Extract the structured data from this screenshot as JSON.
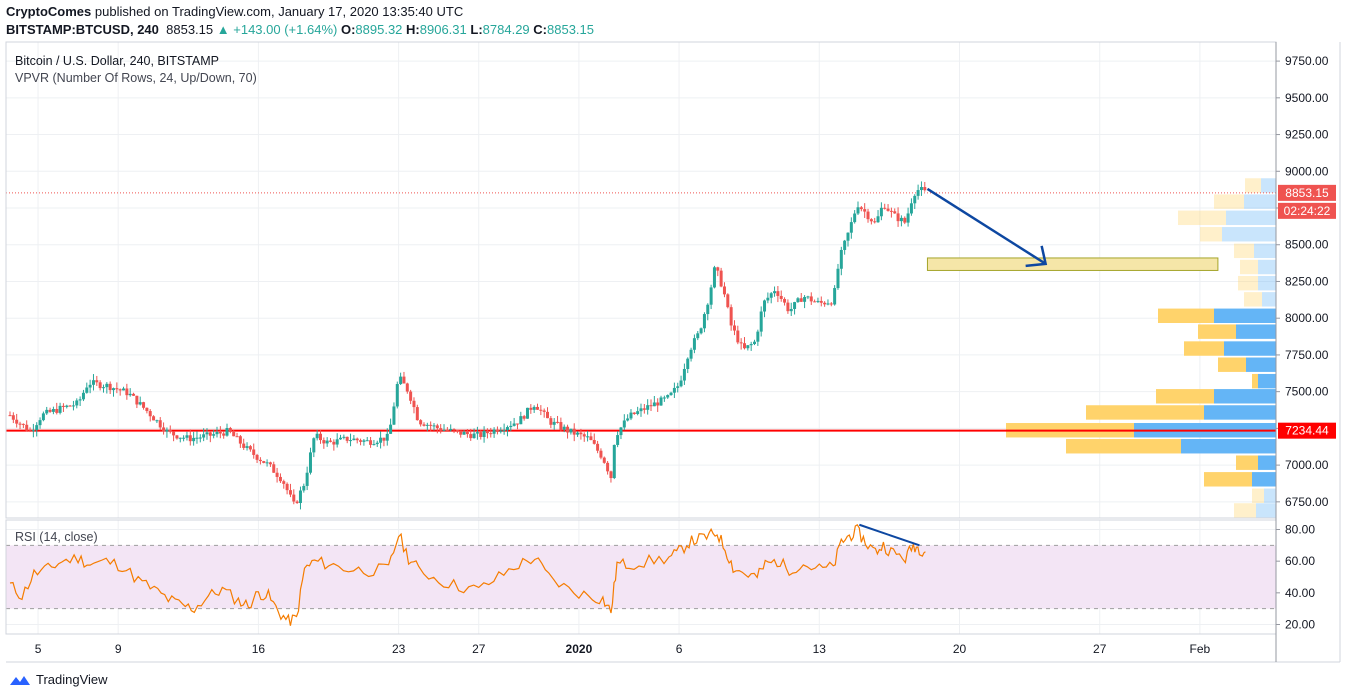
{
  "header": {
    "publisher": "CryptoComes",
    "published_text": "published on TradingView.com, January 17, 2020 13:35:40 UTC",
    "symbol": "BITSTAMP:BTCUSD, 240",
    "last": "8853.15",
    "change": "+143.00 (+1.64%)",
    "o_label": "O:",
    "o": "8895.32",
    "h_label": "H:",
    "h": "8906.31",
    "l_label": "L:",
    "l": "8784.29",
    "c_label": "C:",
    "c": "8853.15"
  },
  "legend": {
    "main": "Bitcoin / U.S. Dollar, 240, BITSTAMP",
    "vpvr": "VPVR (Number Of Rows, 24, Up/Down, 70)",
    "rsi": "RSI (14, close)"
  },
  "footer": {
    "brand": "TradingView"
  },
  "colors": {
    "up": "#26a69a",
    "down": "#ef5350",
    "support_line": "#ff0000",
    "rsi_line": "#f57c00",
    "rsi_band": "#f3e5f5",
    "arrow": "#0d47a1",
    "zone_fill": "#f5e6a8",
    "zone_stroke": "#a5a52a",
    "vol_up": "#64b5f6",
    "vol_down": "#ffd36b"
  },
  "chart_data": {
    "type": "candlestick",
    "y_price_ticks": [
      6750,
      7000,
      7250,
      7500,
      7750,
      8000,
      8250,
      8500,
      8750,
      9000,
      9250,
      9500,
      9750
    ],
    "y_price_tick_labels": [
      "6750.00",
      "7000.00",
      "7250.00",
      "7500.00",
      "7750.00",
      "8000.00",
      "8250.00",
      "8500.00",
      "8750.00",
      "9000.00",
      "9250.00",
      "9500.00",
      "9750.00"
    ],
    "y_price_range": [
      6640,
      9880
    ],
    "x_ticks": [
      {
        "label": "5",
        "day": 5
      },
      {
        "label": "9",
        "day": 9
      },
      {
        "label": "16",
        "day": 16
      },
      {
        "label": "23",
        "day": 23
      },
      {
        "label": "27",
        "day": 27
      },
      {
        "label": "2020",
        "day": 32
      },
      {
        "label": "6",
        "day": 37
      },
      {
        "label": "13",
        "day": 44
      },
      {
        "label": "20",
        "day": 51
      },
      {
        "label": "27",
        "day": 58
      },
      {
        "label": "Feb",
        "day": 63
      }
    ],
    "x_day_range": [
      3.4,
      66.8
    ],
    "price_path": [
      [
        3.6,
        7340
      ],
      [
        4.6,
        7230
      ],
      [
        5.2,
        7340
      ],
      [
        6.0,
        7380
      ],
      [
        7.0,
        7420
      ],
      [
        7.5,
        7560
      ],
      [
        8.5,
        7540
      ],
      [
        9.5,
        7490
      ],
      [
        10.5,
        7360
      ],
      [
        11.5,
        7220
      ],
      [
        12.5,
        7180
      ],
      [
        13.5,
        7200
      ],
      [
        14.5,
        7230
      ],
      [
        15.5,
        7100
      ],
      [
        16.0,
        7050
      ],
      [
        16.5,
        7000
      ],
      [
        17.2,
        6900
      ],
      [
        17.8,
        6720
      ],
      [
        18.3,
        6880
      ],
      [
        18.8,
        7200
      ],
      [
        19.5,
        7150
      ],
      [
        20.5,
        7180
      ],
      [
        21.5,
        7160
      ],
      [
        22.5,
        7190
      ],
      [
        23.0,
        7600
      ],
      [
        23.5,
        7500
      ],
      [
        24.0,
        7300
      ],
      [
        25.0,
        7250
      ],
      [
        26.0,
        7220
      ],
      [
        27.0,
        7200
      ],
      [
        28.0,
        7250
      ],
      [
        29.0,
        7300
      ],
      [
        29.8,
        7420
      ],
      [
        30.5,
        7300
      ],
      [
        31.5,
        7230
      ],
      [
        32.5,
        7180
      ],
      [
        33.2,
        7050
      ],
      [
        33.6,
        6920
      ],
      [
        33.8,
        7200
      ],
      [
        34.5,
        7330
      ],
      [
        35.5,
        7400
      ],
      [
        36.5,
        7460
      ],
      [
        37.0,
        7550
      ],
      [
        37.5,
        7780
      ],
      [
        38.0,
        7900
      ],
      [
        38.5,
        8150
      ],
      [
        38.8,
        8350
      ],
      [
        39.2,
        8200
      ],
      [
        39.6,
        7950
      ],
      [
        40.2,
        7780
      ],
      [
        40.8,
        7840
      ],
      [
        41.2,
        8100
      ],
      [
        41.8,
        8200
      ],
      [
        42.5,
        8050
      ],
      [
        43.2,
        8150
      ],
      [
        44.0,
        8100
      ],
      [
        44.7,
        8120
      ],
      [
        45.0,
        8400
      ],
      [
        45.5,
        8600
      ],
      [
        45.9,
        8780
      ],
      [
        46.3,
        8720
      ],
      [
        46.8,
        8640
      ],
      [
        47.2,
        8780
      ],
      [
        47.7,
        8700
      ],
      [
        48.3,
        8650
      ],
      [
        48.7,
        8850
      ],
      [
        49.0,
        8880
      ],
      [
        49.3,
        8853
      ]
    ],
    "support_level": 7234.44,
    "current_price": 8853.15,
    "price_label": "8853.15",
    "countdown_label": "02:24:22",
    "support_label": "7234.44",
    "vpvr_rows": [
      {
        "price": 6688,
        "up": 20,
        "down": 22
      },
      {
        "price": 6788,
        "up": 12,
        "down": 12
      },
      {
        "price": 6900,
        "up": 24,
        "down": 48
      },
      {
        "price": 7013,
        "up": 18,
        "down": 22
      },
      {
        "price": 7125,
        "up": 95,
        "down": 115
      },
      {
        "price": 7234,
        "up": 142,
        "down": 128
      },
      {
        "price": 7355,
        "up": 72,
        "down": 118
      },
      {
        "price": 7465,
        "up": 62,
        "down": 58
      },
      {
        "price": 7568,
        "up": 18,
        "down": 6
      },
      {
        "price": 7680,
        "up": 30,
        "down": 28
      },
      {
        "price": 7790,
        "up": 52,
        "down": 40
      },
      {
        "price": 7905,
        "up": 40,
        "down": 38
      },
      {
        "price": 8013,
        "up": 62,
        "down": 56
      },
      {
        "price": 8125,
        "up": 14,
        "down": 18
      },
      {
        "price": 8235,
        "up": 18,
        "down": 20
      },
      {
        "price": 8345,
        "up": 18,
        "down": 18
      },
      {
        "price": 8455,
        "up": 22,
        "down": 20
      },
      {
        "price": 8568,
        "up": 54,
        "down": 22
      },
      {
        "price": 8680,
        "up": 50,
        "down": 48
      },
      {
        "price": 8790,
        "up": 32,
        "down": 30
      },
      {
        "price": 8900,
        "up": 15,
        "down": 16
      }
    ],
    "target_zone": {
      "x_start": 49.4,
      "x_end": 63.9,
      "price_low": 8325,
      "price_high": 8410
    },
    "arrow": {
      "from": [
        49.4,
        8880
      ],
      "to": [
        55.3,
        8370
      ]
    },
    "rsi": {
      "ticks": [
        20,
        40,
        60,
        80
      ],
      "tick_labels": [
        "20.00",
        "40.00",
        "60.00",
        "80.00"
      ],
      "range": [
        14,
        86
      ],
      "upper": 70,
      "lower": 30,
      "path": [
        [
          3.6,
          45
        ],
        [
          4.2,
          38
        ],
        [
          4.8,
          52
        ],
        [
          5.5,
          55
        ],
        [
          6.2,
          60
        ],
        [
          7.0,
          62
        ],
        [
          7.6,
          58
        ],
        [
          8.4,
          60
        ],
        [
          9.2,
          57
        ],
        [
          10.0,
          48
        ],
        [
          10.8,
          42
        ],
        [
          11.5,
          36
        ],
        [
          12.2,
          32
        ],
        [
          12.8,
          30
        ],
        [
          13.5,
          38
        ],
        [
          14.2,
          42
        ],
        [
          15.0,
          35
        ],
        [
          15.5,
          32
        ],
        [
          16.0,
          40
        ],
        [
          16.5,
          38
        ],
        [
          17.0,
          28
        ],
        [
          17.5,
          22
        ],
        [
          17.9,
          24
        ],
        [
          18.3,
          55
        ],
        [
          18.8,
          60
        ],
        [
          19.5,
          58
        ],
        [
          20.5,
          55
        ],
        [
          21.5,
          54
        ],
        [
          22.5,
          55
        ],
        [
          23.0,
          77
        ],
        [
          23.5,
          62
        ],
        [
          24.0,
          55
        ],
        [
          25.0,
          48
        ],
        [
          26.0,
          44
        ],
        [
          27.0,
          42
        ],
        [
          28.0,
          50
        ],
        [
          29.0,
          58
        ],
        [
          29.8,
          62
        ],
        [
          30.5,
          50
        ],
        [
          31.5,
          42
        ],
        [
          32.5,
          38
        ],
        [
          33.2,
          36
        ],
        [
          33.6,
          28
        ],
        [
          33.9,
          58
        ],
        [
          34.5,
          58
        ],
        [
          35.5,
          60
        ],
        [
          36.5,
          62
        ],
        [
          37.0,
          66
        ],
        [
          37.5,
          72
        ],
        [
          38.0,
          74
        ],
        [
          38.5,
          76
        ],
        [
          38.9,
          78
        ],
        [
          39.3,
          68
        ],
        [
          39.7,
          56
        ],
        [
          40.3,
          52
        ],
        [
          40.9,
          50
        ],
        [
          41.3,
          58
        ],
        [
          41.9,
          60
        ],
        [
          42.5,
          55
        ],
        [
          43.2,
          58
        ],
        [
          44.0,
          55
        ],
        [
          44.7,
          56
        ],
        [
          45.1,
          72
        ],
        [
          45.5,
          76
        ],
        [
          45.9,
          79
        ],
        [
          46.3,
          72
        ],
        [
          46.8,
          66
        ],
        [
          47.2,
          70
        ],
        [
          47.7,
          65
        ],
        [
          48.3,
          62
        ],
        [
          48.7,
          70
        ],
        [
          49.0,
          68
        ],
        [
          49.3,
          66
        ]
      ],
      "divergence_line": {
        "from": [
          46.0,
          83
        ],
        "to": [
          49.0,
          70
        ]
      }
    }
  }
}
